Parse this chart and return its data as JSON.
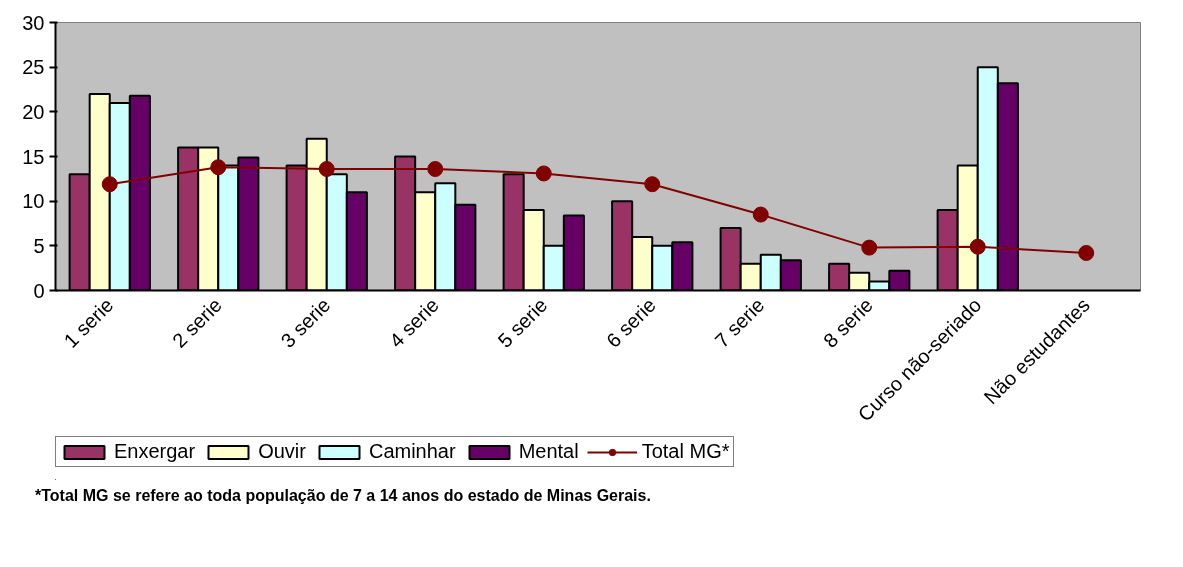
{
  "chart_data": {
    "type": "bar",
    "categories": [
      "1 serie",
      "2 serie",
      "3 serie",
      "4 serie",
      "5 serie",
      "6 serie",
      "7 serie",
      "8 serie",
      "Curso não-seriado",
      "Não estudantes"
    ],
    "series": [
      {
        "name": "Enxergar",
        "color": "#993366",
        "values": [
          13,
          16,
          14,
          15,
          13,
          10,
          7,
          3,
          9,
          null
        ]
      },
      {
        "name": "Ouvir",
        "color": "#ffffcc",
        "values": [
          22,
          16,
          17,
          11,
          9,
          6,
          3,
          2,
          14,
          null
        ]
      },
      {
        "name": "Caminhar",
        "color": "#ccffff",
        "values": [
          21,
          14,
          13,
          12,
          5,
          5,
          4,
          1,
          25,
          null
        ]
      },
      {
        "name": "Mental",
        "color": "#660066",
        "values": [
          21.8,
          14.9,
          11,
          9.6,
          8.4,
          5.4,
          3.4,
          2.2,
          23.2,
          null
        ]
      },
      {
        "name": "Total MG*",
        "color": "#800000",
        "type": "line",
        "marker": "circle",
        "values": [
          11.9,
          13.8,
          13.6,
          13.6,
          13.1,
          11.9,
          8.5,
          4.8,
          4.9,
          4.2
        ]
      }
    ],
    "ylim": [
      0,
      30
    ],
    "yticks": [
      0,
      5,
      10,
      15,
      20,
      25,
      30
    ],
    "grid": false,
    "legend": "bottom",
    "annotations": [
      "*Total MG se refere ao toda população de 7 a 14 anos do estado de Minas Gerais."
    ]
  }
}
